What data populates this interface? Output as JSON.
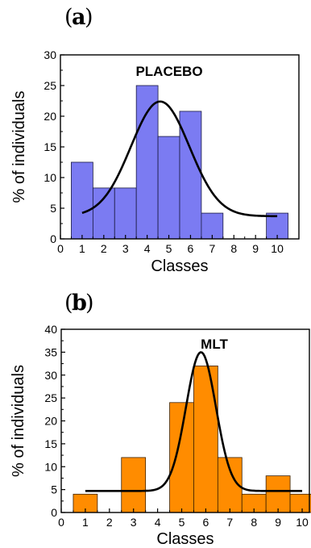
{
  "chart_data": [
    {
      "type": "bar",
      "panel_label": "a",
      "title": "PLACEBO",
      "xlabel": "Classes",
      "ylabel": "% of individuals",
      "xlim": [
        0,
        11
      ],
      "ylim": [
        0,
        30
      ],
      "xticks": [
        0,
        1,
        2,
        3,
        4,
        5,
        6,
        7,
        8,
        9,
        10
      ],
      "yticks": [
        0,
        5,
        10,
        15,
        20,
        25,
        30
      ],
      "bar_color": "#7b7bf2",
      "bar_edge_color": "#1a1a40",
      "curve_color": "#000000",
      "grid": false,
      "bars": [
        {
          "x": 1,
          "value": 12.5
        },
        {
          "x": 2,
          "value": 8.3
        },
        {
          "x": 3,
          "value": 8.3
        },
        {
          "x": 4,
          "value": 25.0
        },
        {
          "x": 5,
          "value": 16.7
        },
        {
          "x": 6,
          "value": 20.8
        },
        {
          "x": 7,
          "value": 4.2
        },
        {
          "x": 10,
          "value": 4.2
        }
      ],
      "fit_curve": {
        "type": "gaussian",
        "baseline": 3.7,
        "peak": 22.4,
        "center": 4.6,
        "sigma": 1.35,
        "x_range": [
          1,
          10
        ]
      }
    },
    {
      "type": "bar",
      "panel_label": "b",
      "title": "MLT",
      "xlabel": "Classes",
      "ylabel": "% of individuals",
      "xlim": [
        0,
        10.3
      ],
      "ylim": [
        0,
        40
      ],
      "xticks": [
        0,
        1,
        2,
        3,
        4,
        5,
        6,
        7,
        8,
        9,
        10
      ],
      "yticks": [
        0,
        5,
        10,
        15,
        20,
        25,
        30,
        35,
        40
      ],
      "bar_color": "#ff8c00",
      "bar_edge_color": "#3a2000",
      "curve_color": "#000000",
      "grid": false,
      "bars": [
        {
          "x": 1,
          "value": 4
        },
        {
          "x": 3,
          "value": 12
        },
        {
          "x": 5,
          "value": 24
        },
        {
          "x": 6,
          "value": 32
        },
        {
          "x": 7,
          "value": 12
        },
        {
          "x": 8,
          "value": 4
        },
        {
          "x": 9,
          "value": 8
        },
        {
          "x": 10,
          "value": 4
        }
      ],
      "fit_curve": {
        "type": "gaussian",
        "baseline": 4.7,
        "peak": 35.0,
        "center": 5.8,
        "sigma": 0.62,
        "x_range": [
          1,
          10
        ]
      }
    }
  ]
}
